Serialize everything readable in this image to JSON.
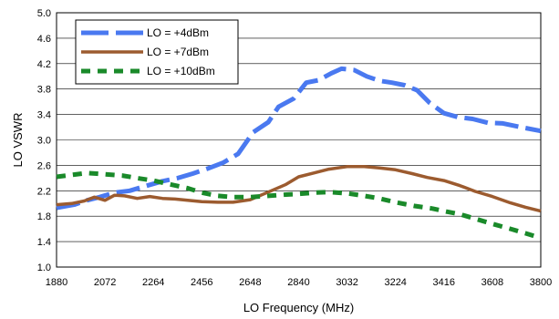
{
  "chart_data": {
    "type": "line",
    "xlabel": "LO Frequency (MHz)",
    "ylabel": "LO VSWR",
    "xlim": [
      1880,
      3800
    ],
    "ylim": [
      1.0,
      5.0
    ],
    "xticks": [
      1880,
      2072,
      2264,
      2456,
      2648,
      2840,
      3032,
      3224,
      3416,
      3608,
      3800
    ],
    "yticks": [
      1.0,
      1.4,
      1.8,
      2.2,
      2.6,
      3.0,
      3.4,
      3.8,
      4.2,
      4.6,
      5.0
    ],
    "xtick_labels": [
      "1880",
      "2072",
      "2264",
      "2456",
      "2648",
      "2840",
      "3032",
      "3224",
      "3416",
      "3608",
      "3800"
    ],
    "ytick_labels": [
      "1.0",
      "1.4",
      "1.8",
      "2.2",
      "2.6",
      "3.0",
      "3.4",
      "3.8",
      "4.2",
      "4.6",
      "5.0"
    ],
    "grid": "horizontal",
    "legend_position": "top-left",
    "series": [
      {
        "name": "LO = +4dBm",
        "color": "#4a79f0",
        "style": "long-dash",
        "points": [
          [
            1880,
            1.93
          ],
          [
            1950,
            1.98
          ],
          [
            2000,
            2.05
          ],
          [
            2050,
            2.1
          ],
          [
            2110,
            2.17
          ],
          [
            2170,
            2.2
          ],
          [
            2230,
            2.27
          ],
          [
            2300,
            2.35
          ],
          [
            2360,
            2.4
          ],
          [
            2420,
            2.47
          ],
          [
            2480,
            2.55
          ],
          [
            2540,
            2.64
          ],
          [
            2600,
            2.78
          ],
          [
            2660,
            3.12
          ],
          [
            2720,
            3.28
          ],
          [
            2760,
            3.52
          ],
          [
            2820,
            3.65
          ],
          [
            2870,
            3.9
          ],
          [
            2920,
            3.94
          ],
          [
            2970,
            4.05
          ],
          [
            3010,
            4.12
          ],
          [
            3060,
            4.1
          ],
          [
            3110,
            4.0
          ],
          [
            3160,
            3.93
          ],
          [
            3210,
            3.9
          ],
          [
            3260,
            3.86
          ],
          [
            3310,
            3.78
          ],
          [
            3360,
            3.58
          ],
          [
            3416,
            3.42
          ],
          [
            3470,
            3.36
          ],
          [
            3530,
            3.33
          ],
          [
            3590,
            3.27
          ],
          [
            3650,
            3.26
          ],
          [
            3720,
            3.2
          ],
          [
            3800,
            3.14
          ]
        ]
      },
      {
        "name": "LO = +7dBm",
        "color": "#9c5b2f",
        "style": "solid",
        "points": [
          [
            1880,
            1.98
          ],
          [
            1940,
            2.0
          ],
          [
            1990,
            2.04
          ],
          [
            2030,
            2.1
          ],
          [
            2072,
            2.05
          ],
          [
            2110,
            2.13
          ],
          [
            2150,
            2.12
          ],
          [
            2200,
            2.08
          ],
          [
            2250,
            2.11
          ],
          [
            2300,
            2.08
          ],
          [
            2350,
            2.07
          ],
          [
            2400,
            2.05
          ],
          [
            2456,
            2.03
          ],
          [
            2520,
            2.02
          ],
          [
            2580,
            2.02
          ],
          [
            2648,
            2.06
          ],
          [
            2720,
            2.18
          ],
          [
            2790,
            2.3
          ],
          [
            2840,
            2.42
          ],
          [
            2900,
            2.48
          ],
          [
            2960,
            2.54
          ],
          [
            3032,
            2.58
          ],
          [
            3100,
            2.58
          ],
          [
            3160,
            2.56
          ],
          [
            3224,
            2.53
          ],
          [
            3290,
            2.47
          ],
          [
            3350,
            2.41
          ],
          [
            3416,
            2.36
          ],
          [
            3480,
            2.28
          ],
          [
            3540,
            2.19
          ],
          [
            3608,
            2.11
          ],
          [
            3680,
            2.01
          ],
          [
            3740,
            1.94
          ],
          [
            3800,
            1.88
          ]
        ]
      },
      {
        "name": "LO = +10dBm",
        "color": "#1a8a2a",
        "style": "dash",
        "points": [
          [
            1880,
            2.42
          ],
          [
            1940,
            2.45
          ],
          [
            2000,
            2.48
          ],
          [
            2072,
            2.46
          ],
          [
            2140,
            2.44
          ],
          [
            2200,
            2.4
          ],
          [
            2264,
            2.36
          ],
          [
            2330,
            2.3
          ],
          [
            2400,
            2.24
          ],
          [
            2456,
            2.17
          ],
          [
            2520,
            2.12
          ],
          [
            2580,
            2.1
          ],
          [
            2648,
            2.1
          ],
          [
            2720,
            2.12
          ],
          [
            2790,
            2.14
          ],
          [
            2840,
            2.15
          ],
          [
            2900,
            2.17
          ],
          [
            2960,
            2.18
          ],
          [
            3032,
            2.16
          ],
          [
            3100,
            2.12
          ],
          [
            3160,
            2.08
          ],
          [
            3224,
            2.02
          ],
          [
            3300,
            1.96
          ],
          [
            3370,
            1.92
          ],
          [
            3416,
            1.88
          ],
          [
            3480,
            1.83
          ],
          [
            3540,
            1.76
          ],
          [
            3608,
            1.68
          ],
          [
            3680,
            1.6
          ],
          [
            3740,
            1.53
          ],
          [
            3780,
            1.48
          ]
        ]
      }
    ]
  }
}
